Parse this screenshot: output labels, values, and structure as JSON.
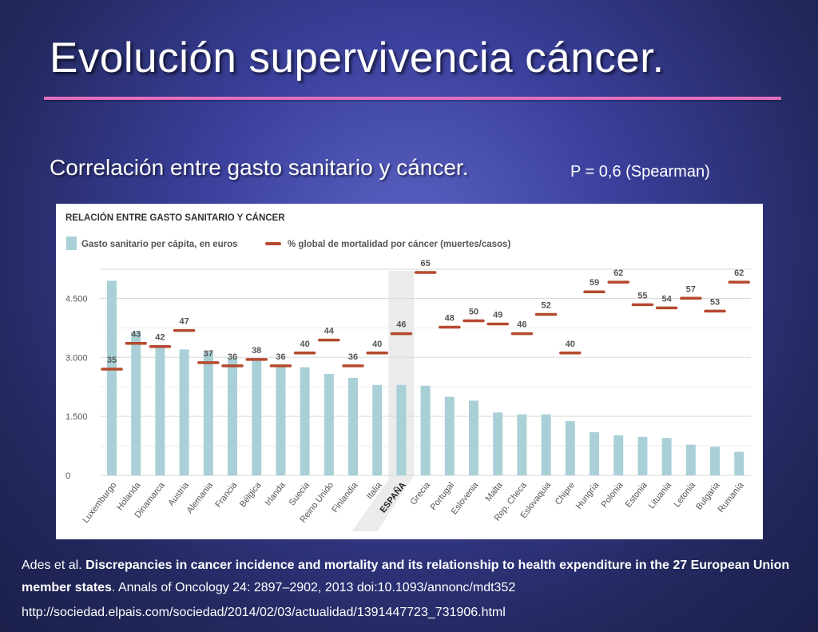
{
  "slide": {
    "title": "Evolución supervivencia cáncer.",
    "subtitle": "Correlación entre gasto sanitario y cáncer.",
    "stat": "P = 0,6 (Spearman)",
    "citation": {
      "authors": "Ades et al.",
      "article_title": "Discrepancies in cancer incidence and mortality and its relationship to health expenditure in the 27 European Union  member states",
      "journal": ". Annals of Oncology 24: 2897–2902, 2013 doi:10.1093/annonc/mdt352"
    },
    "source_url": "http://sociedad.elpais.com/sociedad/2014/02/03/actualidad/1391447723_731906.html"
  },
  "chart_data": {
    "type": "bar",
    "title": "RELACIÓN ENTRE GASTO SANITARIO Y CÁNCER",
    "categories": [
      "Luxemburgo",
      "Holanda",
      "Dinamarca",
      "Austria",
      "Alemania",
      "Francia",
      "Bélgica",
      "Irlanda",
      "Suecia",
      "Reino Unido",
      "Finlandia",
      "Italia",
      "ESPAÑA",
      "Grecia",
      "Portugal",
      "Eslovenia",
      "Malta",
      "Rep. Checa",
      "Eslovaquia",
      "Chipre",
      "Hungría",
      "Polonia",
      "Estonia",
      "Lituania",
      "Letonia",
      "Bulgaria",
      "Rumanía"
    ],
    "highlight_category": "ESPAÑA",
    "series": [
      {
        "name": "Gasto sanitario per cápita, en euros",
        "type": "bar",
        "color": "#a9d0d6",
        "values": [
          4950,
          3650,
          3250,
          3200,
          3150,
          2980,
          2950,
          2780,
          2750,
          2580,
          2480,
          2300,
          2300,
          2280,
          2000,
          1900,
          1600,
          1550,
          1550,
          1380,
          1100,
          1020,
          980,
          950,
          780,
          730,
          600
        ]
      },
      {
        "name": "% global de mortalidad por cáncer (muertes/casos)",
        "type": "marker",
        "color": "#b5492f",
        "values": [
          35,
          43,
          42,
          47,
          37,
          36,
          38,
          36,
          40,
          44,
          36,
          40,
          46,
          65,
          48,
          50,
          49,
          46,
          52,
          40,
          59,
          62,
          55,
          54,
          57,
          53,
          62
        ]
      }
    ],
    "yticks": [
      0,
      1500,
      3000,
      4500
    ],
    "ytick_labels": [
      "0",
      "1.500",
      "3.000",
      "4.500"
    ],
    "ylim": [
      0,
      5200
    ],
    "grid": true,
    "legend_position": "top-left",
    "colors": {
      "bar": "#a9d0d6",
      "marker": "#b5492f",
      "label": "#555555",
      "grid": "#d9d9d9"
    }
  }
}
